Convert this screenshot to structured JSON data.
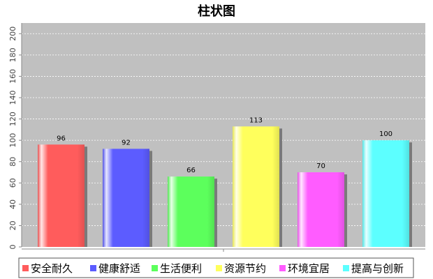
{
  "chart_data": {
    "type": "bar",
    "title": "柱状图",
    "xlabel": "",
    "ylabel": "",
    "categories": [
      "安全耐久",
      "健康舒适",
      "生活便利",
      "资源节约",
      "环境宜居",
      "提高与创新"
    ],
    "values": [
      96,
      92,
      66,
      113,
      70,
      100
    ],
    "colors": [
      "#ff5c5c",
      "#5c5cff",
      "#5cff5c",
      "#ffff5c",
      "#ff5cff",
      "#5cffff"
    ],
    "ylim": [
      0,
      210
    ],
    "yticks": [
      0,
      20,
      40,
      60,
      80,
      100,
      120,
      140,
      160,
      180,
      200
    ],
    "grid": true,
    "plot_background": "#c0c0c0",
    "legend_position": "bottom",
    "data_labels": true
  }
}
